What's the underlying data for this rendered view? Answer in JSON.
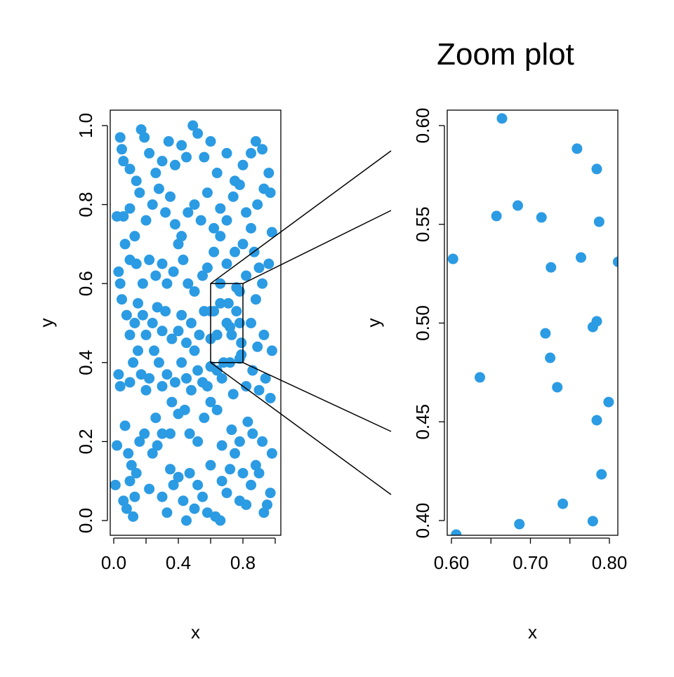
{
  "chart_data": [
    {
      "type": "scatter",
      "title": "",
      "xlabel": "x",
      "ylabel": "y",
      "xlim": [
        0,
        1
      ],
      "ylim": [
        0,
        1
      ],
      "xticks": [
        0,
        0.2,
        0.4,
        0.6,
        0.8,
        1.0
      ],
      "xticklabels": [
        "0.0",
        "0.4",
        "0.8"
      ],
      "xticklabel_values": [
        0,
        0.4,
        0.8
      ],
      "yticks": [
        0,
        0.2,
        0.4,
        0.6,
        0.8,
        1.0
      ],
      "yticklabels": [
        "0.0",
        "0.2",
        "0.4",
        "0.6",
        "0.8",
        "1.0"
      ],
      "color": "#2b9be3",
      "zoom_region": {
        "x": [
          0.6,
          0.8
        ],
        "y": [
          0.4,
          0.6
        ]
      },
      "points": [
        [
          0.02,
          0.19
        ],
        [
          0.01,
          0.09
        ],
        [
          0.06,
          0.05
        ],
        [
          0.08,
          0.03
        ],
        [
          0.12,
          0.01
        ],
        [
          0.13,
          0.06
        ],
        [
          0.1,
          0.1
        ],
        [
          0.11,
          0.14
        ],
        [
          0.14,
          0.12
        ],
        [
          0.16,
          0.2
        ],
        [
          0.09,
          0.17
        ],
        [
          0.07,
          0.24
        ],
        [
          0.19,
          0.22
        ],
        [
          0.22,
          0.08
        ],
        [
          0.26,
          0.26
        ],
        [
          0.27,
          0.19
        ],
        [
          0.24,
          0.17
        ],
        [
          0.3,
          0.06
        ],
        [
          0.33,
          0.02
        ],
        [
          0.35,
          0.13
        ],
        [
          0.37,
          0.09
        ],
        [
          0.4,
          0.11
        ],
        [
          0.43,
          0.05
        ],
        [
          0.45,
          0.0
        ],
        [
          0.47,
          0.12
        ],
        [
          0.5,
          0.03
        ],
        [
          0.52,
          0.09
        ],
        [
          0.55,
          0.06
        ],
        [
          0.58,
          0.02
        ],
        [
          0.6,
          0.14
        ],
        [
          0.63,
          0.01
        ],
        [
          0.66,
          0.0
        ],
        [
          0.67,
          0.1
        ],
        [
          0.7,
          0.07
        ],
        [
          0.72,
          0.13
        ],
        [
          0.75,
          0.17
        ],
        [
          0.78,
          0.05
        ],
        [
          0.8,
          0.12
        ],
        [
          0.82,
          0.04
        ],
        [
          0.85,
          0.09
        ],
        [
          0.88,
          0.14
        ],
        [
          0.9,
          0.12
        ],
        [
          0.93,
          0.02
        ],
        [
          0.95,
          0.04
        ],
        [
          0.97,
          0.07
        ],
        [
          0.98,
          0.17
        ],
        [
          0.92,
          0.2
        ],
        [
          0.86,
          0.22
        ],
        [
          0.83,
          0.25
        ],
        [
          0.78,
          0.2
        ],
        [
          0.73,
          0.23
        ],
        [
          0.67,
          0.19
        ],
        [
          0.64,
          0.28
        ],
        [
          0.6,
          0.3
        ],
        [
          0.56,
          0.26
        ],
        [
          0.52,
          0.2
        ],
        [
          0.47,
          0.22
        ],
        [
          0.44,
          0.28
        ],
        [
          0.4,
          0.27
        ],
        [
          0.36,
          0.3
        ],
        [
          0.35,
          0.22
        ],
        [
          0.3,
          0.22
        ],
        [
          0.03,
          0.37
        ],
        [
          0.04,
          0.34
        ],
        [
          0.1,
          0.35
        ],
        [
          0.12,
          0.4
        ],
        [
          0.15,
          0.43
        ],
        [
          0.17,
          0.37
        ],
        [
          0.2,
          0.33
        ],
        [
          0.22,
          0.36
        ],
        [
          0.25,
          0.43
        ],
        [
          0.28,
          0.4
        ],
        [
          0.3,
          0.34
        ],
        [
          0.33,
          0.37
        ],
        [
          0.38,
          0.35
        ],
        [
          0.42,
          0.4
        ],
        [
          0.45,
          0.36
        ],
        [
          0.48,
          0.33
        ],
        [
          0.52,
          0.38
        ],
        [
          0.55,
          0.35
        ],
        [
          0.58,
          0.34
        ],
        [
          0.6,
          0.39
        ],
        [
          0.64,
          0.38
        ],
        [
          0.67,
          0.36
        ],
        [
          0.72,
          0.4
        ],
        [
          0.74,
          0.32
        ],
        [
          0.78,
          0.41
        ],
        [
          0.82,
          0.34
        ],
        [
          0.86,
          0.38
        ],
        [
          0.9,
          0.33
        ],
        [
          0.94,
          0.36
        ],
        [
          0.97,
          0.31
        ],
        [
          0.98,
          0.43
        ],
        [
          0.93,
          0.47
        ],
        [
          0.89,
          0.44
        ],
        [
          0.85,
          0.5
        ],
        [
          0.04,
          0.6
        ],
        [
          0.05,
          0.56
        ],
        [
          0.08,
          0.52
        ],
        [
          0.1,
          0.47
        ],
        [
          0.13,
          0.5
        ],
        [
          0.15,
          0.55
        ],
        [
          0.18,
          0.52
        ],
        [
          0.2,
          0.47
        ],
        [
          0.24,
          0.5
        ],
        [
          0.27,
          0.54
        ],
        [
          0.3,
          0.48
        ],
        [
          0.32,
          0.53
        ],
        [
          0.36,
          0.46
        ],
        [
          0.4,
          0.48
        ],
        [
          0.42,
          0.52
        ],
        [
          0.45,
          0.45
        ],
        [
          0.48,
          0.5
        ],
        [
          0.5,
          0.43
        ],
        [
          0.53,
          0.47
        ],
        [
          0.56,
          0.53
        ],
        [
          0.6,
          0.46
        ],
        [
          0.62,
          0.53
        ],
        [
          0.66,
          0.55
        ],
        [
          0.7,
          0.5
        ],
        [
          0.72,
          0.49
        ],
        [
          0.73,
          0.47
        ],
        [
          0.76,
          0.53
        ],
        [
          0.78,
          0.5
        ],
        [
          0.79,
          0.45
        ],
        [
          0.79,
          0.42
        ],
        [
          0.88,
          0.56
        ],
        [
          0.92,
          0.6
        ],
        [
          0.96,
          0.65
        ],
        [
          0.9,
          0.64
        ],
        [
          0.87,
          0.68
        ],
        [
          0.82,
          0.62
        ],
        [
          0.8,
          0.7
        ],
        [
          0.75,
          0.68
        ],
        [
          0.7,
          0.65
        ],
        [
          0.66,
          0.72
        ],
        [
          0.62,
          0.68
        ],
        [
          0.58,
          0.64
        ],
        [
          0.55,
          0.62
        ],
        [
          0.5,
          0.58
        ],
        [
          0.46,
          0.6
        ],
        [
          0.43,
          0.66
        ],
        [
          0.4,
          0.7
        ],
        [
          0.37,
          0.63
        ],
        [
          0.33,
          0.6
        ],
        [
          0.3,
          0.65
        ],
        [
          0.26,
          0.62
        ],
        [
          0.22,
          0.66
        ],
        [
          0.18,
          0.6
        ],
        [
          0.14,
          0.65
        ],
        [
          0.1,
          0.66
        ],
        [
          0.07,
          0.7
        ],
        [
          0.03,
          0.63
        ],
        [
          0.02,
          0.77
        ],
        [
          0.06,
          0.77
        ],
        [
          0.1,
          0.79
        ],
        [
          0.13,
          0.72
        ],
        [
          0.16,
          0.83
        ],
        [
          0.2,
          0.76
        ],
        [
          0.24,
          0.8
        ],
        [
          0.28,
          0.84
        ],
        [
          0.32,
          0.78
        ],
        [
          0.35,
          0.82
        ],
        [
          0.38,
          0.75
        ],
        [
          0.42,
          0.72
        ],
        [
          0.46,
          0.78
        ],
        [
          0.5,
          0.8
        ],
        [
          0.54,
          0.76
        ],
        [
          0.58,
          0.83
        ],
        [
          0.62,
          0.74
        ],
        [
          0.66,
          0.79
        ],
        [
          0.7,
          0.76
        ],
        [
          0.74,
          0.82
        ],
        [
          0.78,
          0.85
        ],
        [
          0.82,
          0.78
        ],
        [
          0.85,
          0.74
        ],
        [
          0.89,
          0.8
        ],
        [
          0.93,
          0.84
        ],
        [
          0.97,
          0.83
        ],
        [
          0.98,
          0.73
        ],
        [
          0.96,
          0.88
        ],
        [
          0.92,
          0.94
        ],
        [
          0.88,
          0.96
        ],
        [
          0.85,
          0.93
        ],
        [
          0.8,
          0.9
        ],
        [
          0.75,
          0.86
        ],
        [
          0.7,
          0.93
        ],
        [
          0.64,
          0.88
        ],
        [
          0.6,
          0.96
        ],
        [
          0.56,
          0.92
        ],
        [
          0.52,
          0.98
        ],
        [
          0.49,
          1.0
        ],
        [
          0.45,
          0.92
        ],
        [
          0.42,
          0.95
        ],
        [
          0.38,
          0.9
        ],
        [
          0.34,
          0.96
        ],
        [
          0.3,
          0.91
        ],
        [
          0.26,
          0.88
        ],
        [
          0.22,
          0.93
        ],
        [
          0.19,
          0.97
        ],
        [
          0.17,
          0.99
        ],
        [
          0.14,
          0.86
        ],
        [
          0.1,
          0.89
        ],
        [
          0.06,
          0.91
        ],
        [
          0.05,
          0.94
        ],
        [
          0.04,
          0.97
        ],
        [
          0.6,
          0.53
        ],
        [
          0.66,
          0.6
        ],
        [
          0.71,
          0.55
        ],
        [
          0.76,
          0.59
        ],
        [
          0.78,
          0.58
        ],
        [
          0.64,
          0.47
        ],
        [
          0.68,
          0.4
        ]
      ]
    },
    {
      "type": "scatter",
      "title": "Zoom plot",
      "xlabel": "x",
      "ylabel": "y",
      "xlim": [
        0.6,
        0.8
      ],
      "ylim": [
        0.4,
        0.6
      ],
      "xticks": [
        0.6,
        0.65,
        0.7,
        0.75,
        0.8
      ],
      "xticklabels": [
        "0.60",
        "0.70",
        "0.80"
      ],
      "xticklabel_values": [
        0.6,
        0.7,
        0.8
      ],
      "yticks": [
        0.4,
        0.45,
        0.5,
        0.55,
        0.6
      ],
      "yticklabels": [
        "0.40",
        "0.45",
        "0.50",
        "0.55",
        "0.60"
      ],
      "color": "#2b9be3",
      "points": [
        [
          0.602,
          0.5325
        ],
        [
          0.664,
          0.6036
        ],
        [
          0.759,
          0.5883
        ],
        [
          0.784,
          0.578
        ],
        [
          0.657,
          0.5542
        ],
        [
          0.684,
          0.5595
        ],
        [
          0.714,
          0.5535
        ],
        [
          0.787,
          0.5513
        ],
        [
          0.764,
          0.5332
        ],
        [
          0.726,
          0.5282
        ],
        [
          0.811,
          0.531
        ],
        [
          0.719,
          0.4948
        ],
        [
          0.784,
          0.5009
        ],
        [
          0.779,
          0.498
        ],
        [
          0.725,
          0.4824
        ],
        [
          0.636,
          0.4725
        ],
        [
          0.734,
          0.4675
        ],
        [
          0.799,
          0.46
        ],
        [
          0.784,
          0.4508
        ],
        [
          0.79,
          0.4234
        ],
        [
          0.741,
          0.4085
        ],
        [
          0.779,
          0.3997
        ],
        [
          0.686,
          0.3982
        ],
        [
          0.606,
          0.3929
        ]
      ]
    }
  ]
}
